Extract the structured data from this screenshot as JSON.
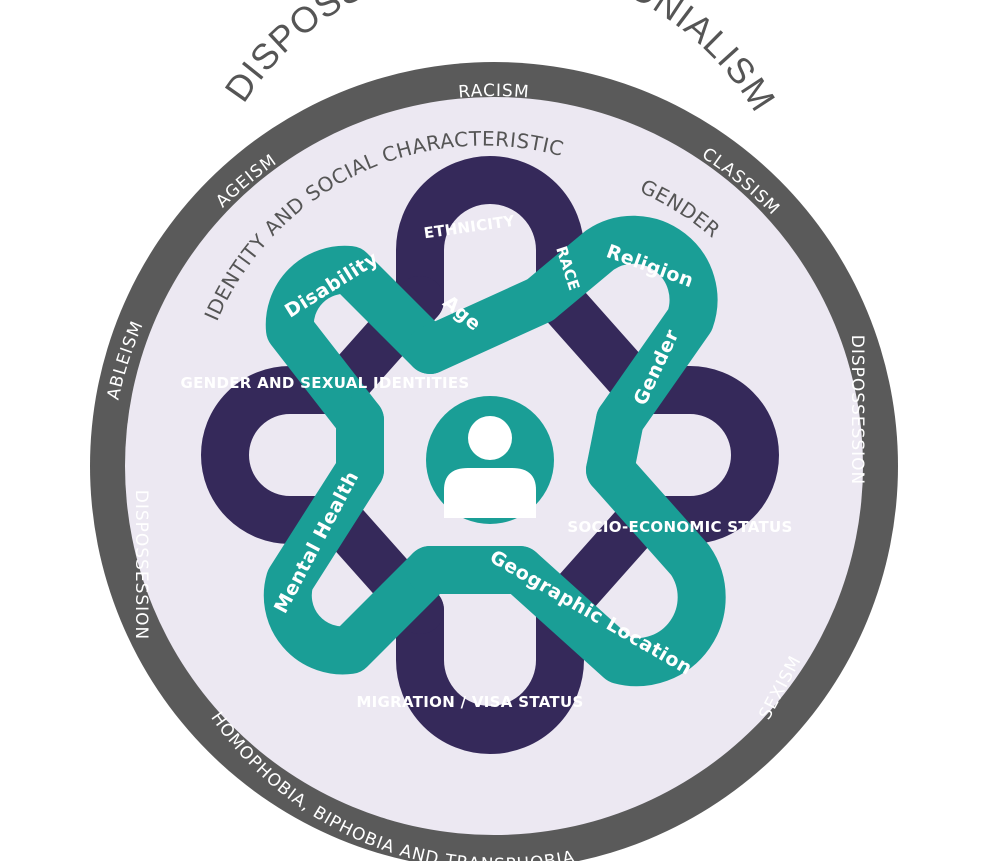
{
  "title": "DISPOSSESSION & COLONIALISM",
  "outer_ring": [
    "RACISM",
    "CLASSISM",
    "DISPOSSESSION",
    "SEXISM",
    "HOMOPHOBIA, BIPHOBIA AND TRANSPHOBIA",
    "DISPOSSESSION",
    "ABLEISM",
    "AGEISM"
  ],
  "inner_ring": {
    "label": "IDENTITY AND SOCIAL CHARACTERISTIC",
    "gender_label": "GENDER"
  },
  "purple_loops": {
    "ethnicity": "ETHNICITY",
    "race": "RACE",
    "gender_sexual": "GENDER AND SEXUAL IDENTITIES",
    "socio_economic": "SOCIO-ECONOMIC STATUS",
    "migration": "MIGRATION / VISA STATUS"
  },
  "teal_loops": {
    "disability": "Disability",
    "age": "Age",
    "religion": "Religion",
    "gender": "Gender",
    "mental_health": "Mental Health",
    "geographic": "Geographic Location"
  },
  "center_icon": "person-icon",
  "colors": {
    "outer_ring": "#5a5a5a",
    "inner_fill": "#ece8f2",
    "purple": "#35295a",
    "teal": "#1a9e96",
    "title": "#555555",
    "text_light": "#ffffff",
    "text_dark": "#555555"
  }
}
